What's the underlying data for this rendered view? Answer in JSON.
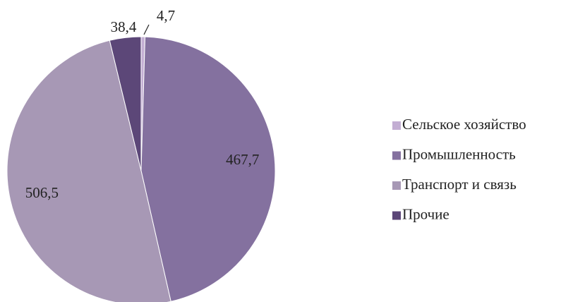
{
  "chart_data": {
    "type": "pie",
    "categories": [
      "Сельское хозяйство",
      "Промышленность",
      "Транспорт и связь",
      "Прочие"
    ],
    "values": [
      4.7,
      467.7,
      506.5,
      38.4
    ],
    "value_labels": [
      "4,7",
      "467,7",
      "506,5",
      "38,4"
    ],
    "colors": [
      "#c3aed3",
      "#84719f",
      "#a798b5",
      "#5c4778"
    ],
    "legend": "right"
  }
}
